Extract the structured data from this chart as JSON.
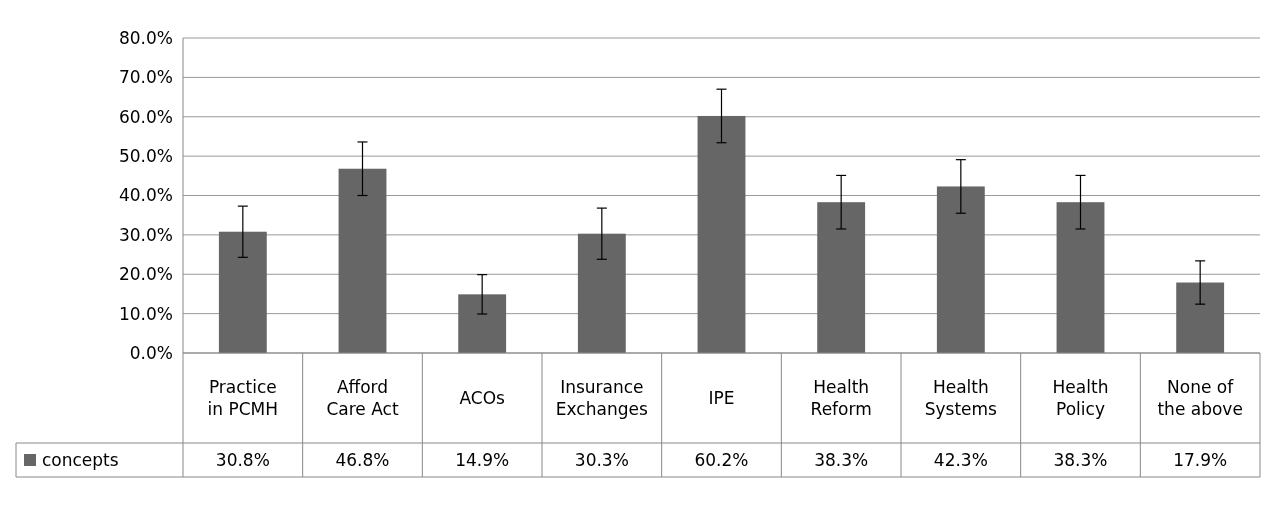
{
  "chart_data": {
    "type": "bar",
    "categories": [
      "Practice in PCMH",
      "Afford Care Act",
      "ACOs",
      "Insurance Exchanges",
      "IPE",
      "Health Reform",
      "Health Systems",
      "Health Policy",
      "None of the above"
    ],
    "series": [
      {
        "name": "concepts",
        "color": "#666666",
        "values": [
          30.8,
          46.8,
          14.9,
          30.3,
          60.2,
          38.3,
          42.3,
          38.3,
          17.9
        ],
        "errors": [
          6.5,
          6.8,
          5,
          6.5,
          6.8,
          6.8,
          6.8,
          6.8,
          5.5
        ],
        "value_labels": [
          "30.8%",
          "46.8%",
          "14.9%",
          "30.3%",
          "60.2%",
          "38.3%",
          "42.3%",
          "38.3%",
          "17.9%"
        ]
      }
    ],
    "ylim": [
      0,
      80
    ],
    "yticks": [
      {
        "value": 0,
        "label": "0.0%"
      },
      {
        "value": 10,
        "label": "10.0%"
      },
      {
        "value": 20,
        "label": "20.0%"
      },
      {
        "value": 30,
        "label": "30.0%"
      },
      {
        "value": 40,
        "label": "40.0%"
      },
      {
        "value": 50,
        "label": "50.0%"
      },
      {
        "value": 60,
        "label": "60.0%"
      },
      {
        "value": 70,
        "label": "70.0%"
      },
      {
        "value": 80,
        "label": "80.0%"
      }
    ],
    "grid": "y",
    "legend": "bottom left"
  }
}
